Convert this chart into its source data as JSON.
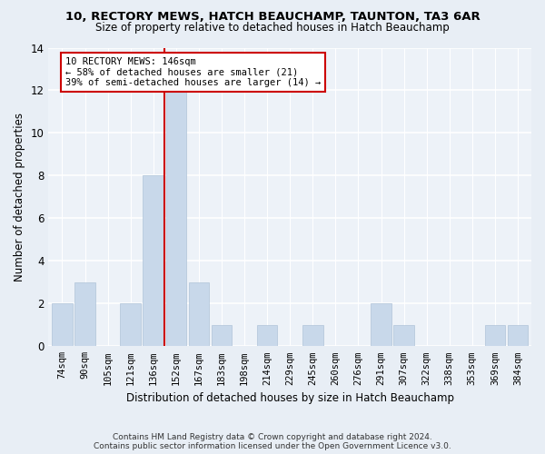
{
  "title1": "10, RECTORY MEWS, HATCH BEAUCHAMP, TAUNTON, TA3 6AR",
  "title2": "Size of property relative to detached houses in Hatch Beauchamp",
  "xlabel": "Distribution of detached houses by size in Hatch Beauchamp",
  "ylabel": "Number of detached properties",
  "categories": [
    "74sqm",
    "90sqm",
    "105sqm",
    "121sqm",
    "136sqm",
    "152sqm",
    "167sqm",
    "183sqm",
    "198sqm",
    "214sqm",
    "229sqm",
    "245sqm",
    "260sqm",
    "276sqm",
    "291sqm",
    "307sqm",
    "322sqm",
    "338sqm",
    "353sqm",
    "369sqm",
    "384sqm"
  ],
  "values": [
    2,
    3,
    0,
    2,
    8,
    12,
    3,
    1,
    0,
    1,
    0,
    1,
    0,
    0,
    2,
    1,
    0,
    0,
    0,
    1,
    1
  ],
  "bar_color": "#c8d8ea",
  "bar_edge_color": "#b0c4d8",
  "annotation_text": "10 RECTORY MEWS: 146sqm\n← 58% of detached houses are smaller (21)\n39% of semi-detached houses are larger (14) →",
  "annotation_box_color": "#ffffff",
  "annotation_box_edge": "#cc0000",
  "ref_line_color": "#cc0000",
  "ylim": [
    0,
    14
  ],
  "yticks": [
    0,
    2,
    4,
    6,
    8,
    10,
    12,
    14
  ],
  "footer": "Contains HM Land Registry data © Crown copyright and database right 2024.\nContains public sector information licensed under the Open Government Licence v3.0.",
  "bg_color": "#e8eef5",
  "plot_bg_color": "#edf2f8"
}
